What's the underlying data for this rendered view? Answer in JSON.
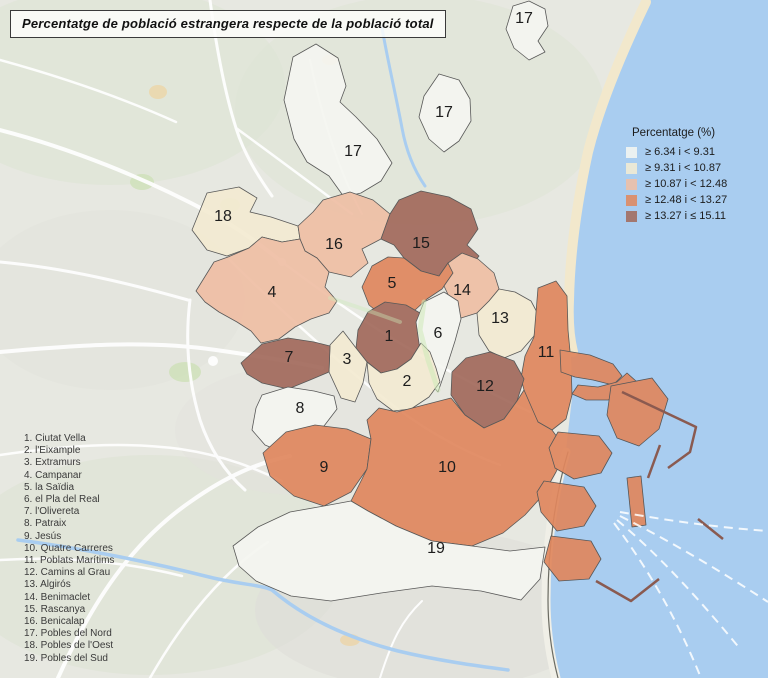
{
  "title": "Percentatge de població estrangera respecte de la població total",
  "legend": {
    "title": "Percentatge (%)",
    "classes": [
      {
        "label": "≥ 6.34 i < 9.31",
        "color": "#f5f6f1"
      },
      {
        "label": "≥ 9.31 i < 10.87",
        "color": "#f4ebd2"
      },
      {
        "label": "≥ 10.87 i < 12.48",
        "color": "#efbfa5"
      },
      {
        "label": "≥ 12.48 i < 13.27",
        "color": "#e0875e"
      },
      {
        "label": "≥ 13.27 i ≤ 15.11",
        "color": "#a26a5c"
      }
    ]
  },
  "map": {
    "type": "choropleth",
    "region": "València districts",
    "colors": {
      "sea": "#a9cdf0",
      "land": "#e7e8e1",
      "beach": "#f1e6c8",
      "road": "#ffffff"
    },
    "districts": [
      {
        "number": "1",
        "name": "Ciutat Vella",
        "class_index": 4
      },
      {
        "number": "2",
        "name": "l'Eixample",
        "class_index": 1
      },
      {
        "number": "3",
        "name": "Extramurs",
        "class_index": 1
      },
      {
        "number": "4",
        "name": "Campanar",
        "class_index": 2
      },
      {
        "number": "5",
        "name": "la Saïdia",
        "class_index": 3
      },
      {
        "number": "6",
        "name": "el Pla del Real",
        "class_index": 0
      },
      {
        "number": "7",
        "name": "l'Olivereta",
        "class_index": 4
      },
      {
        "number": "8",
        "name": "Patraix",
        "class_index": 0
      },
      {
        "number": "9",
        "name": "Jesús",
        "class_index": 3
      },
      {
        "number": "10",
        "name": "Quatre Carreres",
        "class_index": 3
      },
      {
        "number": "11",
        "name": "Poblats Marítims",
        "class_index": 3
      },
      {
        "number": "12",
        "name": "Camins al Grau",
        "class_index": 4
      },
      {
        "number": "13",
        "name": "Algirós",
        "class_index": 1
      },
      {
        "number": "14",
        "name": "Benimaclet",
        "class_index": 2
      },
      {
        "number": "15",
        "name": "Rascanya",
        "class_index": 4
      },
      {
        "number": "16",
        "name": "Benicalap",
        "class_index": 2
      },
      {
        "number": "17",
        "name": "Pobles del Nord",
        "class_index": 0
      },
      {
        "number": "18",
        "name": "Pobles de l'Oest",
        "class_index": 1
      },
      {
        "number": "19",
        "name": "Pobles del Sud",
        "class_index": 0
      }
    ]
  }
}
